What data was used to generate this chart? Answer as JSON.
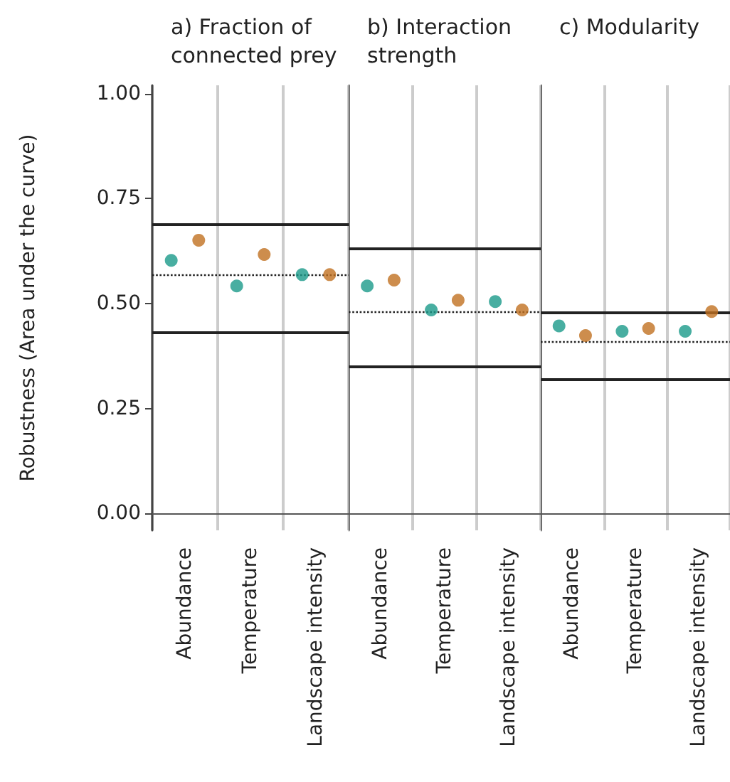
{
  "chart_data": [
    {
      "type": "scatter",
      "title": "a) Fraction of\nconnected prey",
      "ylabel": "Robustness (Area under the curve)",
      "categories": [
        "Abundance",
        "Temperature",
        "Landscape intensity"
      ],
      "series": [
        {
          "color": "#1a9a8a",
          "values": [
            0.603,
            0.542,
            0.569
          ]
        },
        {
          "color": "#c07020",
          "values": [
            0.651,
            0.617,
            0.569
          ]
        }
      ],
      "ylim": [
        -0.04,
        1.02
      ],
      "yticks": [
        {
          "value": 0,
          "label": "0.00"
        },
        0.25,
        {
          "value": 0.5,
          "label": "0.50"
        },
        0.75,
        {
          "value": 1,
          "label": "1.00"
        }
      ],
      "ref_lines": [
        {
          "axis": "y",
          "value": 0.685,
          "line_style": "solid"
        },
        {
          "axis": "y",
          "value": 0.434,
          "line_style": "solid"
        },
        {
          "axis": "y",
          "value": 0.566,
          "line_style": "dotted"
        }
      ],
      "grid": "x",
      "marker": "circle"
    },
    {
      "type": "scatter",
      "title": "b) Interaction\nstrength",
      "categories": [
        "Abundance",
        "Temperature",
        "Landscape intensity"
      ],
      "series": [
        {
          "color": "#1a9a8a",
          "values": [
            0.542,
            0.485,
            0.505
          ]
        },
        {
          "color": "#c07020",
          "values": [
            0.556,
            0.508,
            0.485
          ]
        }
      ],
      "ylim": [
        -0.04,
        1.02
      ],
      "tick_labels": "x",
      "ref_lines": [
        {
          "axis": "y",
          "value": 0.627,
          "line_style": "solid"
        },
        {
          "axis": "y",
          "value": 0.353,
          "line_style": "solid"
        },
        {
          "axis": "y",
          "value": 0.485,
          "line_style": "dotted"
        }
      ],
      "grid": "x",
      "marker": "circle"
    },
    {
      "type": "scatter",
      "title": "c) Modularity",
      "categories": [
        "Abundance",
        "Temperature",
        "Landscape intensity"
      ],
      "series": [
        {
          "color": "#1a9a8a",
          "values": [
            0.447,
            0.434,
            0.434
          ]
        },
        {
          "color": "#c07020",
          "values": [
            0.424,
            0.441,
            0.481
          ]
        }
      ],
      "ylim": [
        -0.04,
        1.02
      ],
      "tick_labels": "x",
      "ref_lines": [
        {
          "axis": "y",
          "value": 0.481,
          "line_style": "solid"
        },
        {
          "axis": "y",
          "value": 0.315,
          "line_style": "solid"
        },
        {
          "axis": "y",
          "value": 0.414,
          "line_style": "dotted"
        }
      ],
      "grid": "x",
      "marker": "circle"
    }
  ]
}
